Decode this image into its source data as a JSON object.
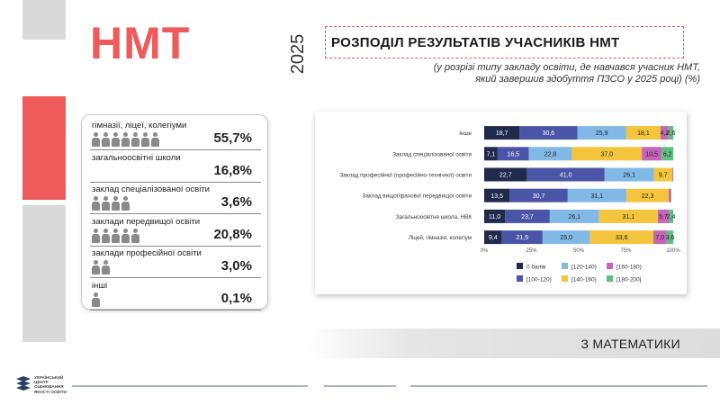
{
  "brand": {
    "name": "НМТ",
    "year": "2025",
    "logo_text": [
      "УКРАЇНСЬКИЙ",
      "ЦЕНТР",
      "ОЦІНЮВАННЯ",
      "ЯКОСТІ ОСВІТИ"
    ]
  },
  "title": "РОЗПОДІЛ РЕЗУЛЬТАТІВ УЧАСНИКІВ НМТ",
  "subtitle_line1": "(у розрізі типу закладу освіти, де навчався учасник НМТ,",
  "subtitle_line2": "який завершив здобуття ПЗСО  у 2025 році) (%)",
  "subject": "З МАТЕМАТИКИ",
  "shares": [
    {
      "label": "гімназії, ліцеї, колегіуми",
      "value": "55,7%",
      "icons": 7
    },
    {
      "label": "загальноосвітні школи",
      "value": "16,8%",
      "icons": 0
    },
    {
      "label": "заклад спеціалізованої освіти",
      "value": "3,6%",
      "icons": 4
    },
    {
      "label": "заклади передвищої освіти",
      "value": "20,8%",
      "icons": 5
    },
    {
      "label": "заклади професійної освіти",
      "value": "3,0%",
      "icons": 2
    },
    {
      "label": "інші",
      "value": "0,1%",
      "icons": 1
    }
  ],
  "colors": {
    "accent": "#ef5b5b",
    "bands": [
      "#1f2a4d",
      "#4a55a8",
      "#82b8e6",
      "#f4c53c",
      "#c565b8",
      "#5fbf7f"
    ]
  },
  "chart_data": {
    "type": "bar",
    "orientation": "horizontal",
    "stacked": true,
    "categories": [
      "Інше",
      "Заклад спеціалізованої освіти",
      "Заклад професійної (професійно-технічної) освіти",
      "Заклад вищої/фахової передвищої освіти",
      "Загальноосвітня школа, НВК",
      "Ліцей, гімназія, колегіум"
    ],
    "series": [
      {
        "name": "0 балів",
        "values": [
          18.7,
          7.1,
          22.7,
          13.5,
          11.0,
          9.4
        ],
        "labels": [
          "18,7",
          "7,1",
          "22,7",
          "13,5",
          "11,0",
          "9,4"
        ]
      },
      {
        "name": "[100-120)",
        "values": [
          30.6,
          16.5,
          41.0,
          30.7,
          23.7,
          21.5
        ],
        "labels": [
          "30,6",
          "16,5",
          "41,0",
          "30,7",
          "23,7",
          "21,5"
        ]
      },
      {
        "name": "[120-140)",
        "values": [
          25.9,
          22.8,
          26.1,
          31.1,
          26.1,
          25.0
        ],
        "labels": [
          "25,9",
          "22,8",
          "26,1",
          "31,1",
          "26,1",
          "25,0"
        ]
      },
      {
        "name": "[140-160)",
        "values": [
          18.1,
          37.0,
          9.7,
          22.3,
          31.1,
          33.6
        ],
        "labels": [
          "18,1",
          "37,0",
          "9,7",
          "22,3",
          "31,1",
          "33,6"
        ]
      },
      {
        "name": "[160-180)",
        "values": [
          4.2,
          10.5,
          0.4,
          1.2,
          5.7,
          7.0
        ],
        "labels": [
          "4,2",
          "10,5",
          "",
          "",
          "5,7",
          "7,0"
        ]
      },
      {
        "name": "[180-200]",
        "values": [
          2.6,
          6.2,
          0.1,
          0.2,
          2.4,
          3.6
        ],
        "labels": [
          "2,6",
          "6,2",
          "",
          "",
          "2,4",
          "3,6"
        ]
      }
    ],
    "xlim": [
      0,
      100
    ],
    "x_ticks": [
      "0%",
      "25%",
      "50%",
      "75%",
      "100%"
    ],
    "legend_order": [
      "0 балів",
      "[120-140)",
      "[160-180)",
      "[100-120)",
      "[140-160)",
      "[180-200]"
    ],
    "legend_position": "bottom",
    "grid": false
  }
}
